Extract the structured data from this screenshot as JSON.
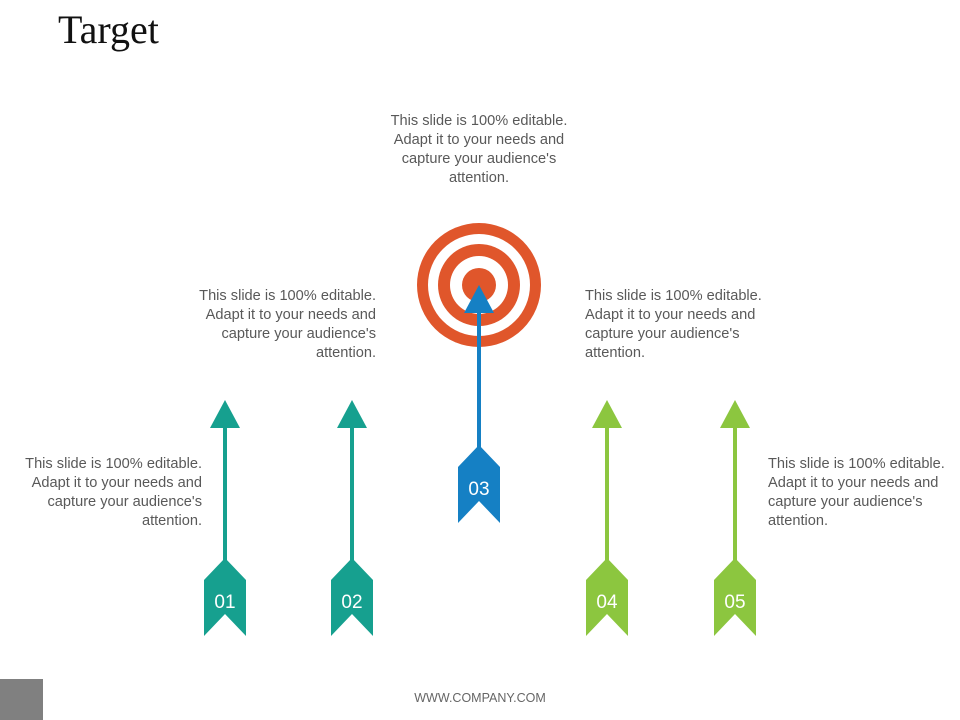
{
  "title": "Target",
  "colors": {
    "teal": "#16a08f",
    "blue": "#1580c4",
    "green": "#8cc63f",
    "target": "#e0562b",
    "text": "#595959"
  },
  "target_icon": "bullseye-target-icon",
  "arrows": [
    {
      "label": "01",
      "color": "#16a08f",
      "text": "This slide is 100% editable. Adapt it to your needs and capture your audience's attention."
    },
    {
      "label": "02",
      "color": "#16a08f",
      "text": "This slide is 100% editable. Adapt it to your needs and capture your audience's attention."
    },
    {
      "label": "03",
      "color": "#1580c4",
      "text": "This slide is 100% editable. Adapt it to your needs and capture your audience's attention."
    },
    {
      "label": "04",
      "color": "#8cc63f",
      "text": "This slide is 100% editable. Adapt it to your needs and capture your audience's attention."
    },
    {
      "label": "05",
      "color": "#8cc63f",
      "text": "This slide is 100% editable. Adapt it to your needs and capture your audience's attention."
    }
  ],
  "footer": "WWW.COMPANY.COM"
}
